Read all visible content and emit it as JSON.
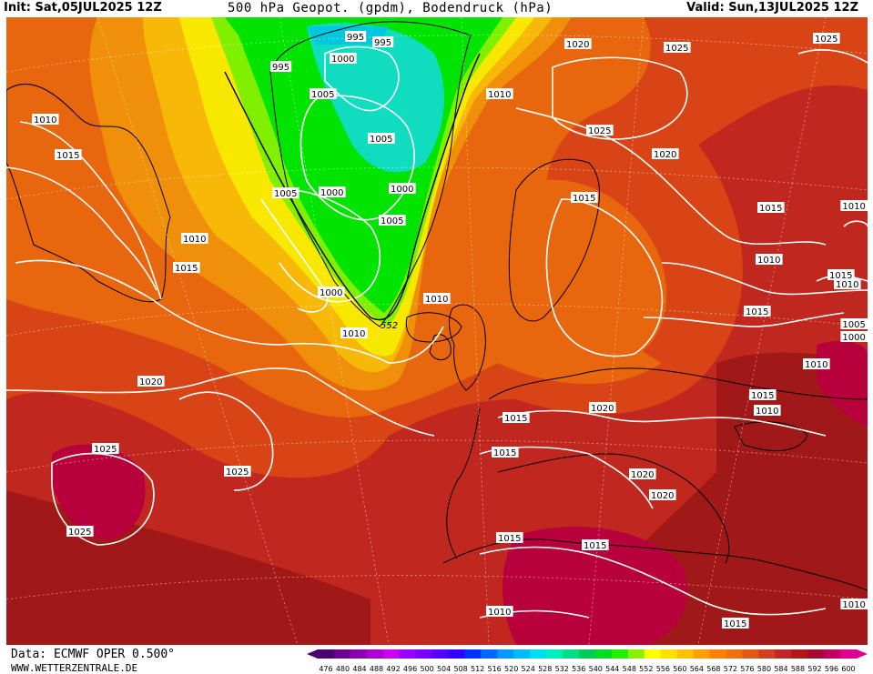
{
  "header": {
    "init": "Init: Sat,05JUL2025 12Z",
    "title": "500 hPa Geopot. (gpdm), Bodendruck (hPa)",
    "valid": "Valid: Sun,13JUL2025 12Z"
  },
  "footer": {
    "data": "Data: ECMWF OPER 0.500°",
    "site": "WWW.WETTERZENTRALE.DE"
  },
  "legend": {
    "ticks": [
      "476",
      "480",
      "484",
      "488",
      "492",
      "496",
      "500",
      "504",
      "508",
      "512",
      "516",
      "520",
      "524",
      "528",
      "532",
      "536",
      "540",
      "544",
      "548",
      "552",
      "556",
      "560",
      "564",
      "568",
      "572",
      "576",
      "580",
      "584",
      "588",
      "592",
      "596",
      "600"
    ],
    "colors": [
      "#4b0070",
      "#6a0090",
      "#8a00b0",
      "#aa00d0",
      "#cc00f0",
      "#9900ff",
      "#7700ff",
      "#5500ff",
      "#3300ff",
      "#0033ff",
      "#0066ff",
      "#0099ff",
      "#00bbff",
      "#00ddee",
      "#00eebb",
      "#00dd88",
      "#00cc55",
      "#00dd22",
      "#22ee00",
      "#88f000",
      "#ffff00",
      "#ffe000",
      "#ffc000",
      "#ffa000",
      "#ff8000",
      "#f07010",
      "#e05818",
      "#d04020",
      "#c02828",
      "#b01818",
      "#a00d30",
      "#c00060",
      "#e00090"
    ]
  },
  "map_colors": {
    "ocean_deep_red": "#a01818",
    "red": "#c0281f",
    "red_orange": "#d84416",
    "orange": "#e8660e",
    "light_orange": "#f0900a",
    "yellow_orange": "#f7b808",
    "yellow": "#f8e800",
    "light_green": "#80f000",
    "green": "#00e400",
    "teal": "#10dcc0",
    "magenta": "#b8003c"
  },
  "isobar_labels": [
    {
      "text": "995",
      "id": "a1"
    },
    {
      "text": "995",
      "id": "a2"
    },
    {
      "text": "995",
      "id": "a3"
    },
    {
      "text": "1000",
      "id": "a4"
    },
    {
      "text": "1005",
      "id": "a5"
    },
    {
      "text": "1005",
      "id": "a6"
    },
    {
      "text": "1010",
      "id": "a7"
    },
    {
      "text": "1000",
      "id": "a8"
    },
    {
      "text": "1000",
      "id": "a9"
    },
    {
      "text": "1005",
      "id": "a10"
    },
    {
      "text": "1005",
      "id": "a11"
    },
    {
      "text": "1010",
      "id": "a12"
    },
    {
      "text": "1015",
      "id": "a13"
    },
    {
      "text": "1010",
      "id": "a14"
    },
    {
      "text": "1015",
      "id": "a15"
    },
    {
      "text": "1000",
      "id": "a16"
    },
    {
      "text": "552",
      "id": "a17"
    },
    {
      "text": "1010",
      "id": "a18"
    },
    {
      "text": "1010",
      "id": "a19"
    },
    {
      "text": "1010",
      "id": "a20"
    },
    {
      "text": "1020",
      "id": "a21"
    },
    {
      "text": "1025",
      "id": "a22"
    },
    {
      "text": "1025",
      "id": "a23"
    },
    {
      "text": "1025",
      "id": "a24"
    },
    {
      "text": "1020",
      "id": "a25"
    },
    {
      "text": "1015",
      "id": "a26"
    },
    {
      "text": "1015",
      "id": "a27"
    },
    {
      "text": "1010",
      "id": "a28"
    },
    {
      "text": "1015",
      "id": "a29"
    },
    {
      "text": "1015",
      "id": "a30"
    },
    {
      "text": "1010",
      "id": "a31"
    },
    {
      "text": "1005",
      "id": "a32"
    },
    {
      "text": "1000",
      "id": "a33"
    },
    {
      "text": "1010",
      "id": "a34"
    },
    {
      "text": "1015",
      "id": "a35"
    },
    {
      "text": "1010",
      "id": "a36"
    },
    {
      "text": "1020",
      "id": "a37"
    },
    {
      "text": "1015",
      "id": "a38"
    },
    {
      "text": "1015",
      "id": "a39"
    },
    {
      "text": "1020",
      "id": "a40"
    },
    {
      "text": "1020",
      "id": "a41"
    },
    {
      "text": "1015",
      "id": "a42"
    },
    {
      "text": "1015",
      "id": "a43"
    },
    {
      "text": "1010",
      "id": "a44"
    },
    {
      "text": "1015",
      "id": "a45"
    },
    {
      "text": "1010",
      "id": "a46"
    },
    {
      "text": "1020",
      "id": "a47"
    },
    {
      "text": "1025",
      "id": "a48"
    },
    {
      "text": "1025",
      "id": "a49"
    },
    {
      "text": "1025",
      "id": "a50"
    },
    {
      "text": "1015",
      "id": "a51"
    },
    {
      "text": "1010",
      "id": "a52"
    }
  ]
}
